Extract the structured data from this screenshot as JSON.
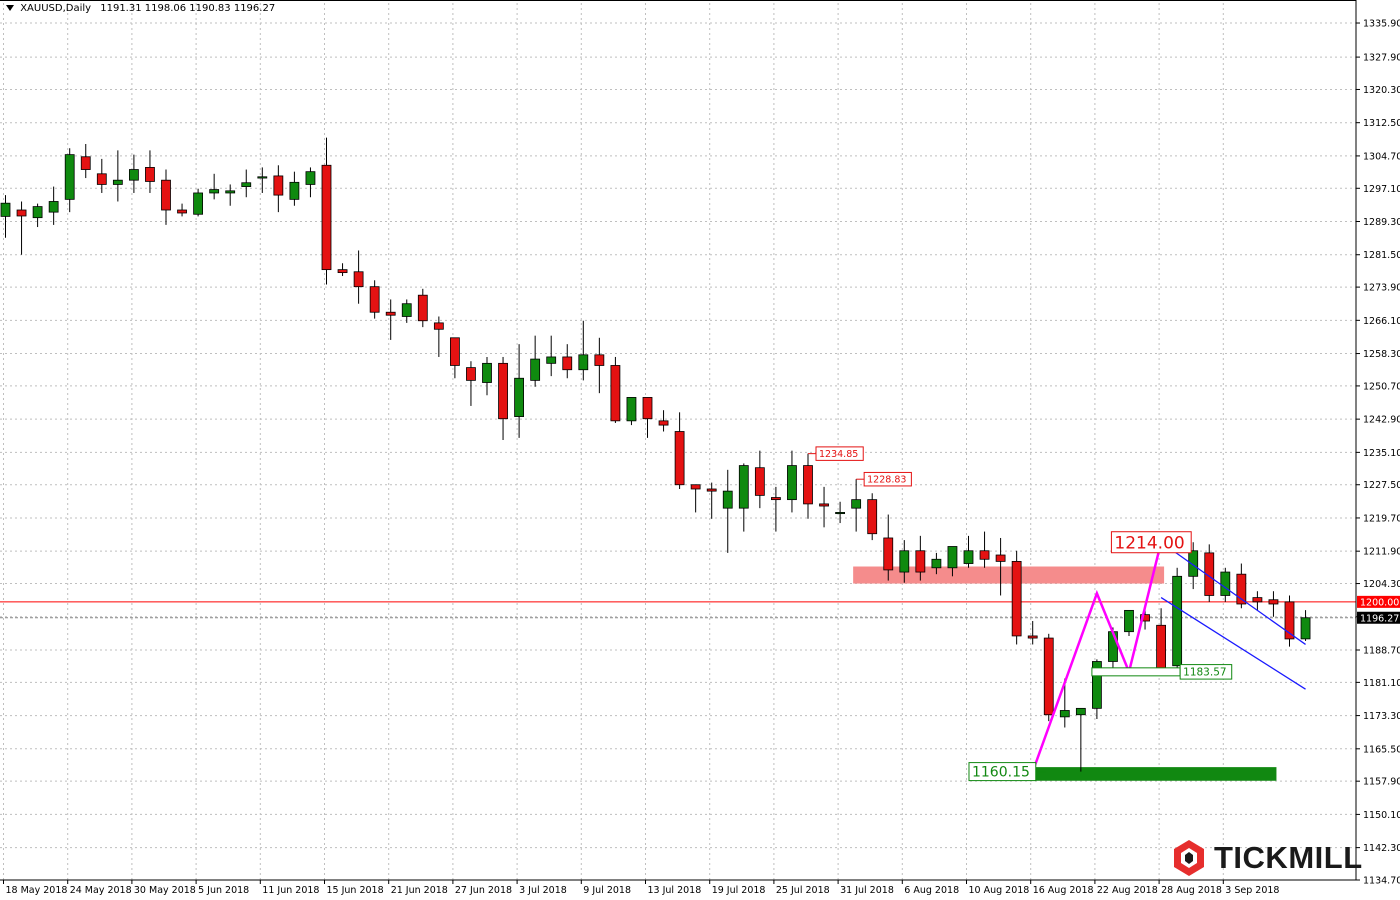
{
  "header": {
    "symbol": "XAUUSD,Daily",
    "ohlc": "1191.31 1198.06 1190.83 1196.27"
  },
  "brand": {
    "name": "TICKMILL",
    "accent": "#e62e2d",
    "dark": "#1a1a1a"
  },
  "colors": {
    "bull": "#0f8a0f",
    "bear": "#e41212",
    "grid": "#bfbfbf",
    "zone_resistance": "#f58c8c",
    "zone_support": "#118811",
    "channel": "#1a1aff",
    "zigzag": "#ff00ff",
    "level_1200": "#ff0000"
  },
  "chart_data": {
    "type": "candlestick",
    "symbol": "XAUUSD",
    "timeframe": "Daily",
    "ylim": [
      1134.7,
      1340.6
    ],
    "y_ticks": [
      "1335.90",
      "1327.90",
      "1320.30",
      "1312.50",
      "1304.70",
      "1297.10",
      "1289.30",
      "1281.50",
      "1273.90",
      "1266.10",
      "1258.30",
      "1250.70",
      "1242.90",
      "1235.10",
      "1227.50",
      "1219.70",
      "1211.90",
      "1204.30",
      "1196.50",
      "1188.70",
      "1181.10",
      "1173.30",
      "1165.50",
      "1157.90",
      "1150.10",
      "1142.30",
      "1134.70"
    ],
    "x_labels": [
      {
        "i": 0,
        "label": "18 May 2018"
      },
      {
        "i": 4,
        "label": "24 May 2018"
      },
      {
        "i": 8,
        "label": "30 May 2018"
      },
      {
        "i": 12,
        "label": "5 Jun 2018"
      },
      {
        "i": 16,
        "label": "11 Jun 2018"
      },
      {
        "i": 20,
        "label": "15 Jun 2018"
      },
      {
        "i": 24,
        "label": "21 Jun 2018"
      },
      {
        "i": 28,
        "label": "27 Jun 2018"
      },
      {
        "i": 32,
        "label": "3 Jul 2018"
      },
      {
        "i": 36,
        "label": "9 Jul 2018"
      },
      {
        "i": 40,
        "label": "13 Jul 2018"
      },
      {
        "i": 44,
        "label": "19 Jul 2018"
      },
      {
        "i": 48,
        "label": "25 Jul 2018"
      },
      {
        "i": 52,
        "label": "31 Jul 2018"
      },
      {
        "i": 56,
        "label": "6 Aug 2018"
      },
      {
        "i": 60,
        "label": "10 Aug 2018"
      },
      {
        "i": 64,
        "label": "16 Aug 2018"
      },
      {
        "i": 68,
        "label": "22 Aug 2018"
      },
      {
        "i": 72,
        "label": "28 Aug 2018"
      },
      {
        "i": 76,
        "label": "3 Sep 2018"
      }
    ],
    "candles": [
      [
        1290.5,
        1295.5,
        1285.5,
        1293.6
      ],
      [
        1292.0,
        1294.0,
        1281.5,
        1290.6
      ],
      [
        1290.2,
        1293.5,
        1288.0,
        1292.8
      ],
      [
        1291.5,
        1297.5,
        1288.5,
        1294.0
      ],
      [
        1294.5,
        1306.5,
        1291.5,
        1305.0
      ],
      [
        1304.5,
        1307.5,
        1299.5,
        1301.5
      ],
      [
        1300.5,
        1304.0,
        1296.0,
        1298.0
      ],
      [
        1298.0,
        1306.0,
        1294.0,
        1299.0
      ],
      [
        1299.0,
        1305.0,
        1296.0,
        1301.5
      ],
      [
        1302.0,
        1306.0,
        1296.0,
        1298.7
      ],
      [
        1299.0,
        1301.5,
        1288.5,
        1292.0
      ],
      [
        1292.0,
        1293.5,
        1290.5,
        1291.3
      ],
      [
        1291.0,
        1297.0,
        1290.5,
        1296.0
      ],
      [
        1296.0,
        1300.5,
        1294.5,
        1296.8
      ],
      [
        1296.0,
        1298.0,
        1293.0,
        1296.5
      ],
      [
        1297.5,
        1301.5,
        1295.0,
        1298.4
      ],
      [
        1299.5,
        1302.0,
        1296.0,
        1299.8
      ],
      [
        1300.0,
        1302.5,
        1291.5,
        1295.5
      ],
      [
        1294.5,
        1301.0,
        1293.0,
        1298.5
      ],
      [
        1298.0,
        1302.0,
        1295.0,
        1301.0
      ],
      [
        1302.5,
        1309.0,
        1274.5,
        1278.0
      ],
      [
        1278.0,
        1279.5,
        1276.5,
        1277.3
      ],
      [
        1277.5,
        1282.5,
        1270.0,
        1274.0
      ],
      [
        1274.0,
        1275.5,
        1266.5,
        1268.0
      ],
      [
        1268.0,
        1271.0,
        1261.5,
        1267.3
      ],
      [
        1267.0,
        1271.0,
        1265.5,
        1270.0
      ],
      [
        1272.0,
        1273.5,
        1264.5,
        1266.0
      ],
      [
        1265.5,
        1267.0,
        1257.5,
        1264.0
      ],
      [
        1262.0,
        1262.0,
        1252.5,
        1255.5
      ],
      [
        1255.0,
        1256.5,
        1246.0,
        1252.0
      ],
      [
        1251.5,
        1257.5,
        1248.5,
        1256.0
      ],
      [
        1256.0,
        1257.5,
        1238.0,
        1243.0
      ],
      [
        1243.5,
        1260.5,
        1238.5,
        1252.5
      ],
      [
        1252.0,
        1262.5,
        1250.5,
        1257.0
      ],
      [
        1256.0,
        1262.5,
        1253.0,
        1257.5
      ],
      [
        1257.5,
        1260.5,
        1252.5,
        1254.5
      ],
      [
        1254.5,
        1266.0,
        1252.0,
        1258.0
      ],
      [
        1258.0,
        1262.0,
        1249.0,
        1255.5
      ],
      [
        1255.5,
        1257.5,
        1242.0,
        1242.5
      ],
      [
        1242.5,
        1248.0,
        1241.5,
        1248.0
      ],
      [
        1248.0,
        1248.0,
        1238.5,
        1243.0
      ],
      [
        1242.5,
        1245.0,
        1240.0,
        1241.5
      ],
      [
        1240.0,
        1244.5,
        1226.5,
        1227.5
      ],
      [
        1227.5,
        1227.5,
        1221.0,
        1226.5
      ],
      [
        1226.5,
        1228.0,
        1219.5,
        1226.0
      ],
      [
        1222.0,
        1231.0,
        1211.5,
        1226.0
      ],
      [
        1222.0,
        1232.5,
        1216.5,
        1232.0
      ],
      [
        1231.5,
        1235.5,
        1222.0,
        1225.0
      ],
      [
        1224.5,
        1227.0,
        1216.5,
        1224.0
      ],
      [
        1224.0,
        1235.5,
        1221.0,
        1232.0
      ],
      [
        1232.0,
        1234.8,
        1219.5,
        1223.0
      ],
      [
        1223.0,
        1227.0,
        1217.5,
        1222.5
      ],
      [
        1221.0,
        1223.5,
        1218.5,
        1221.0
      ],
      [
        1222.0,
        1228.8,
        1216.5,
        1224.0
      ],
      [
        1224.0,
        1225.5,
        1214.5,
        1216.0
      ],
      [
        1215.0,
        1220.5,
        1205.0,
        1207.5
      ],
      [
        1207.0,
        1214.5,
        1204.5,
        1212.0
      ],
      [
        1212.0,
        1215.5,
        1205.0,
        1207.0
      ],
      [
        1208.0,
        1211.5,
        1206.5,
        1210.0
      ],
      [
        1208.0,
        1212.5,
        1206.0,
        1213.0
      ],
      [
        1209.0,
        1215.5,
        1208.0,
        1212.0
      ],
      [
        1212.0,
        1216.5,
        1208.0,
        1210.0
      ],
      [
        1211.0,
        1215.0,
        1201.5,
        1209.5
      ],
      [
        1209.5,
        1212.0,
        1190.0,
        1192.0
      ],
      [
        1192.0,
        1195.5,
        1190.0,
        1191.5
      ],
      [
        1191.5,
        1192.5,
        1172.0,
        1173.5
      ],
      [
        1173.0,
        1182.0,
        1170.5,
        1174.5
      ],
      [
        1173.5,
        1175.0,
        1160.15,
        1175.0
      ],
      [
        1175.0,
        1186.5,
        1172.5,
        1186.0
      ],
      [
        1186.0,
        1194.0,
        1184.5,
        1193.0
      ],
      [
        1193.0,
        1198.0,
        1192.0,
        1198.0
      ],
      [
        1197.0,
        1199.5,
        1193.5,
        1195.5
      ],
      [
        1194.5,
        1198.5,
        1183.57,
        1184.5
      ],
      [
        1185.0,
        1208.0,
        1184.0,
        1206.0
      ],
      [
        1206.0,
        1214.0,
        1203.0,
        1212.0
      ],
      [
        1211.5,
        1213.5,
        1200.0,
        1201.5
      ],
      [
        1201.5,
        1208.0,
        1200.0,
        1207.0
      ],
      [
        1206.5,
        1209.0,
        1198.5,
        1199.5
      ],
      [
        1201.0,
        1202.5,
        1198.0,
        1200.0
      ],
      [
        1200.5,
        1202.5,
        1196.5,
        1199.5
      ],
      [
        1200.0,
        1201.5,
        1189.5,
        1191.3
      ],
      [
        1191.31,
        1198.06,
        1190.83,
        1196.27
      ]
    ],
    "annotations": {
      "high_labels": [
        {
          "value": "1234.85",
          "at": 50
        },
        {
          "value": "1228.83",
          "at": 53
        }
      ],
      "major_high": {
        "value": "1214.00",
        "at": 74
      },
      "support_low": {
        "value": "1160.15",
        "at": 65
      },
      "pullback_low": {
        "value": "1183.57",
        "at": 72
      },
      "level_line": {
        "price": 1200.0,
        "label": "1200.00"
      },
      "current_price": {
        "price": 1196.27,
        "label": "1196.27"
      },
      "resistance_zone": {
        "from": 1204.3,
        "to": 1208.3,
        "start": 53,
        "end": 72
      },
      "support_zone": {
        "from": 1158.0,
        "to": 1161.2,
        "start": 62,
        "end": 79
      },
      "zigzag": [
        [
          64,
          1160.15
        ],
        [
          68,
          1202.0
        ],
        [
          70,
          1183.57
        ],
        [
          72,
          1214.0
        ]
      ],
      "channel": [
        {
          "from": [
            72,
            1214.0
          ],
          "to": [
            81,
            1190.0
          ]
        },
        {
          "from": [
            72,
            1201.0
          ],
          "to": [
            81,
            1179.5
          ]
        }
      ]
    }
  }
}
